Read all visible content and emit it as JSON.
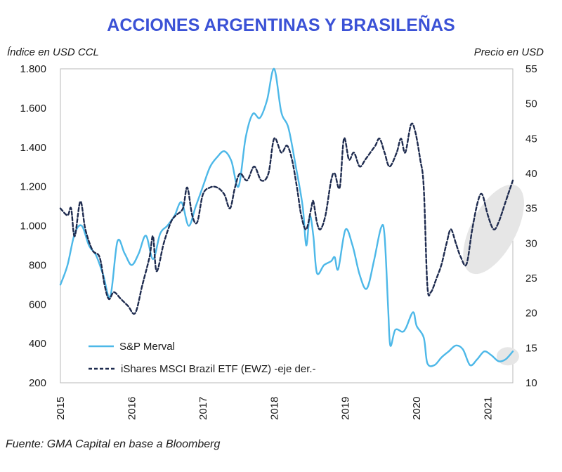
{
  "chart_data": {
    "type": "line",
    "title": "ACCIONES ARGENTINAS Y BRASILEÑAS",
    "ylabel_left": "Índice en USD CCL",
    "ylabel_right": "Precio en USD",
    "source": "Fuente: GMA Capital en base a Bloomberg",
    "x_range": [
      2015.0,
      2021.35
    ],
    "x_ticks": [
      2015,
      2016,
      2017,
      2018,
      2019,
      2020,
      2021
    ],
    "x_tick_labels": [
      "2015",
      "2016",
      "2017",
      "2018",
      "2019",
      "2020",
      "2021"
    ],
    "ylim_left": [
      200,
      1800
    ],
    "ylim_right": [
      10,
      55
    ],
    "y_ticks_left": [
      200,
      400,
      600,
      800,
      1000,
      1200,
      1400,
      1600,
      1800
    ],
    "y_tick_labels_left": [
      "200",
      "400",
      "600",
      "800",
      "1.000",
      "1.200",
      "1.400",
      "1.600",
      "1.800"
    ],
    "y_ticks_right": [
      10,
      15,
      20,
      25,
      30,
      35,
      40,
      45,
      50,
      55
    ],
    "y_tick_labels_right": [
      "10",
      "15",
      "20",
      "25",
      "30",
      "35",
      "40",
      "45",
      "50",
      "55"
    ],
    "grid": false,
    "legend_position": "bottom-left",
    "series": [
      {
        "name": "S&P Merval",
        "axis": "left",
        "color": "#4db8e8",
        "style": "solid",
        "points": [
          [
            2015.0,
            700
          ],
          [
            2015.1,
            800
          ],
          [
            2015.2,
            960
          ],
          [
            2015.3,
            1000
          ],
          [
            2015.4,
            900
          ],
          [
            2015.5,
            850
          ],
          [
            2015.6,
            750
          ],
          [
            2015.7,
            640
          ],
          [
            2015.8,
            920
          ],
          [
            2015.9,
            860
          ],
          [
            2016.0,
            800
          ],
          [
            2016.1,
            860
          ],
          [
            2016.2,
            950
          ],
          [
            2016.3,
            830
          ],
          [
            2016.4,
            960
          ],
          [
            2016.5,
            1000
          ],
          [
            2016.6,
            1050
          ],
          [
            2016.7,
            1120
          ],
          [
            2016.8,
            1000
          ],
          [
            2016.9,
            1100
          ],
          [
            2017.0,
            1200
          ],
          [
            2017.1,
            1300
          ],
          [
            2017.2,
            1350
          ],
          [
            2017.3,
            1380
          ],
          [
            2017.4,
            1330
          ],
          [
            2017.5,
            1200
          ],
          [
            2017.6,
            1450
          ],
          [
            2017.7,
            1570
          ],
          [
            2017.8,
            1550
          ],
          [
            2017.9,
            1640
          ],
          [
            2018.0,
            1800
          ],
          [
            2018.1,
            1580
          ],
          [
            2018.2,
            1500
          ],
          [
            2018.3,
            1310
          ],
          [
            2018.4,
            1100
          ],
          [
            2018.45,
            900
          ],
          [
            2018.5,
            1050
          ],
          [
            2018.55,
            950
          ],
          [
            2018.6,
            760
          ],
          [
            2018.7,
            800
          ],
          [
            2018.8,
            820
          ],
          [
            2018.85,
            840
          ],
          [
            2018.9,
            780
          ],
          [
            2019.0,
            980
          ],
          [
            2019.1,
            900
          ],
          [
            2019.2,
            750
          ],
          [
            2019.3,
            680
          ],
          [
            2019.4,
            820
          ],
          [
            2019.5,
            990
          ],
          [
            2019.55,
            950
          ],
          [
            2019.6,
            580
          ],
          [
            2019.63,
            390
          ],
          [
            2019.7,
            470
          ],
          [
            2019.8,
            460
          ],
          [
            2019.85,
            480
          ],
          [
            2019.95,
            560
          ],
          [
            2020.0,
            490
          ],
          [
            2020.1,
            430
          ],
          [
            2020.15,
            300
          ],
          [
            2020.25,
            290
          ],
          [
            2020.35,
            330
          ],
          [
            2020.45,
            360
          ],
          [
            2020.55,
            390
          ],
          [
            2020.65,
            370
          ],
          [
            2020.75,
            290
          ],
          [
            2020.85,
            320
          ],
          [
            2020.95,
            360
          ],
          [
            2021.05,
            340
          ],
          [
            2021.15,
            310
          ],
          [
            2021.25,
            320
          ],
          [
            2021.35,
            360
          ]
        ]
      },
      {
        "name": "iShares MSCI Brazil ETF (EWZ) -eje der.-",
        "axis": "right",
        "color": "#1e2b4f",
        "style": "dashed",
        "points": [
          [
            2015.0,
            35
          ],
          [
            2015.1,
            34
          ],
          [
            2015.15,
            35
          ],
          [
            2015.2,
            31
          ],
          [
            2015.28,
            36
          ],
          [
            2015.35,
            32
          ],
          [
            2015.45,
            29
          ],
          [
            2015.55,
            28
          ],
          [
            2015.62,
            24
          ],
          [
            2015.68,
            22
          ],
          [
            2015.75,
            23
          ],
          [
            2015.85,
            22
          ],
          [
            2015.95,
            21
          ],
          [
            2016.05,
            20
          ],
          [
            2016.15,
            24
          ],
          [
            2016.25,
            28
          ],
          [
            2016.3,
            31
          ],
          [
            2016.35,
            26
          ],
          [
            2016.45,
            30
          ],
          [
            2016.55,
            33
          ],
          [
            2016.62,
            34
          ],
          [
            2016.72,
            35
          ],
          [
            2016.78,
            38
          ],
          [
            2016.85,
            34
          ],
          [
            2016.92,
            33
          ],
          [
            2017.0,
            37
          ],
          [
            2017.1,
            38
          ],
          [
            2017.2,
            38
          ],
          [
            2017.3,
            37
          ],
          [
            2017.38,
            35
          ],
          [
            2017.45,
            38
          ],
          [
            2017.52,
            40
          ],
          [
            2017.62,
            39
          ],
          [
            2017.72,
            41
          ],
          [
            2017.82,
            39
          ],
          [
            2017.92,
            40
          ],
          [
            2018.0,
            45
          ],
          [
            2018.1,
            43
          ],
          [
            2018.18,
            44
          ],
          [
            2018.25,
            42
          ],
          [
            2018.32,
            38
          ],
          [
            2018.38,
            34
          ],
          [
            2018.45,
            32
          ],
          [
            2018.52,
            35
          ],
          [
            2018.55,
            36
          ],
          [
            2018.6,
            33
          ],
          [
            2018.65,
            32
          ],
          [
            2018.72,
            34
          ],
          [
            2018.8,
            39
          ],
          [
            2018.85,
            40
          ],
          [
            2018.92,
            38
          ],
          [
            2018.98,
            45
          ],
          [
            2019.05,
            42
          ],
          [
            2019.12,
            43
          ],
          [
            2019.2,
            41
          ],
          [
            2019.28,
            42
          ],
          [
            2019.35,
            43
          ],
          [
            2019.42,
            44
          ],
          [
            2019.48,
            45
          ],
          [
            2019.55,
            43
          ],
          [
            2019.62,
            41
          ],
          [
            2019.72,
            43
          ],
          [
            2019.78,
            45
          ],
          [
            2019.84,
            43
          ],
          [
            2019.92,
            47
          ],
          [
            2019.98,
            46
          ],
          [
            2020.05,
            42
          ],
          [
            2020.1,
            38
          ],
          [
            2020.15,
            24
          ],
          [
            2020.2,
            23
          ],
          [
            2020.28,
            25
          ],
          [
            2020.35,
            27
          ],
          [
            2020.42,
            30
          ],
          [
            2020.48,
            32
          ],
          [
            2020.55,
            30
          ],
          [
            2020.62,
            28
          ],
          [
            2020.7,
            27
          ],
          [
            2020.78,
            32
          ],
          [
            2020.86,
            36
          ],
          [
            2020.92,
            37
          ],
          [
            2021.0,
            34
          ],
          [
            2021.08,
            32
          ],
          [
            2021.15,
            33
          ],
          [
            2021.25,
            36
          ],
          [
            2021.35,
            39
          ]
        ]
      }
    ]
  }
}
